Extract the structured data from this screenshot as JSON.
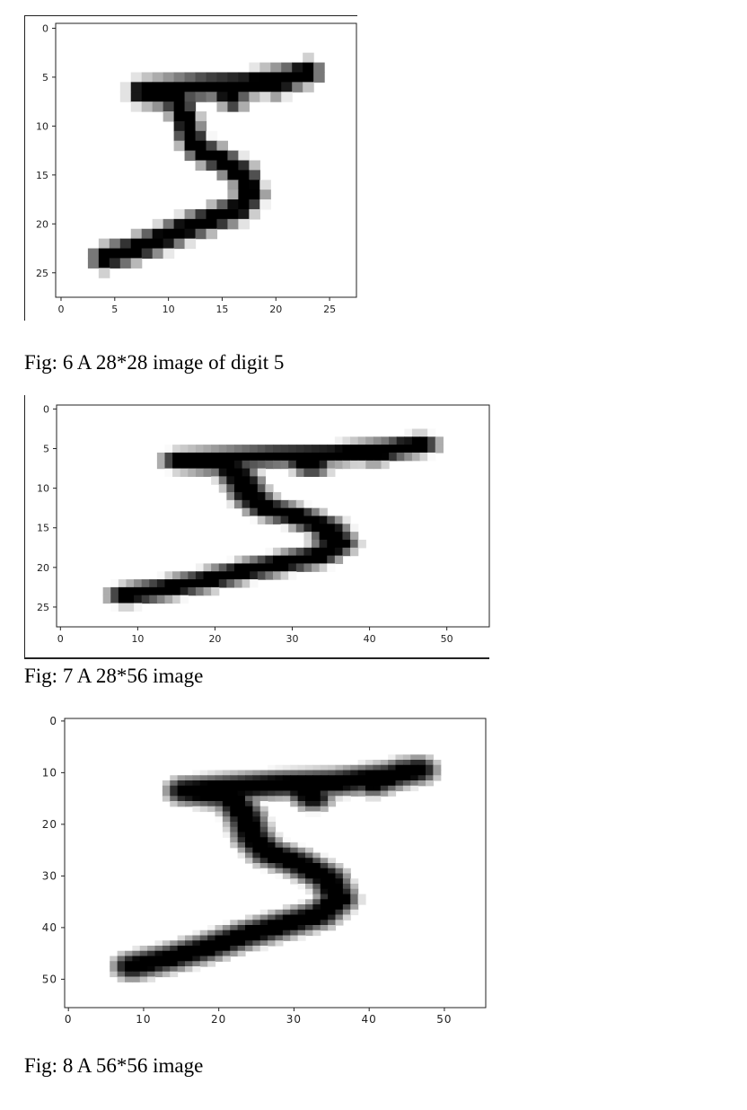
{
  "figures": [
    {
      "id": "fig6",
      "caption": "Fig: 6 A 28*28 image of digit 5",
      "chart_data": {
        "type": "heatmap",
        "title": "",
        "xlabel": "",
        "ylabel": "",
        "image_size": [
          28,
          28
        ],
        "x_ticks": [
          "0",
          "5",
          "10",
          "15",
          "20",
          "25"
        ],
        "y_ticks": [
          "0",
          "5",
          "10",
          "15",
          "20",
          "25"
        ],
        "colormap": "gray_r",
        "xlim": [
          0,
          28
        ],
        "ylim": [
          28,
          0
        ]
      }
    },
    {
      "id": "fig7",
      "caption": "Fig: 7 A 28*56 image",
      "chart_data": {
        "type": "heatmap",
        "title": "",
        "xlabel": "",
        "ylabel": "",
        "image_size": [
          28,
          56
        ],
        "x_ticks": [
          "0",
          "10",
          "20",
          "30",
          "40",
          "50"
        ],
        "y_ticks": [
          "0",
          "5",
          "10",
          "15",
          "20",
          "25"
        ],
        "colormap": "gray_r",
        "xlim": [
          0,
          56
        ],
        "ylim": [
          28,
          0
        ]
      }
    },
    {
      "id": "fig8",
      "caption": "Fig: 8 A 56*56 image",
      "chart_data": {
        "type": "heatmap",
        "title": "",
        "xlabel": "",
        "ylabel": "",
        "image_size": [
          56,
          56
        ],
        "x_ticks": [
          "0",
          "10",
          "20",
          "30",
          "40",
          "50"
        ],
        "y_ticks": [
          "0",
          "10",
          "20",
          "30",
          "40",
          "50"
        ],
        "colormap": "gray_r",
        "xlim": [
          0,
          56
        ],
        "ylim": [
          56,
          0
        ]
      }
    }
  ]
}
